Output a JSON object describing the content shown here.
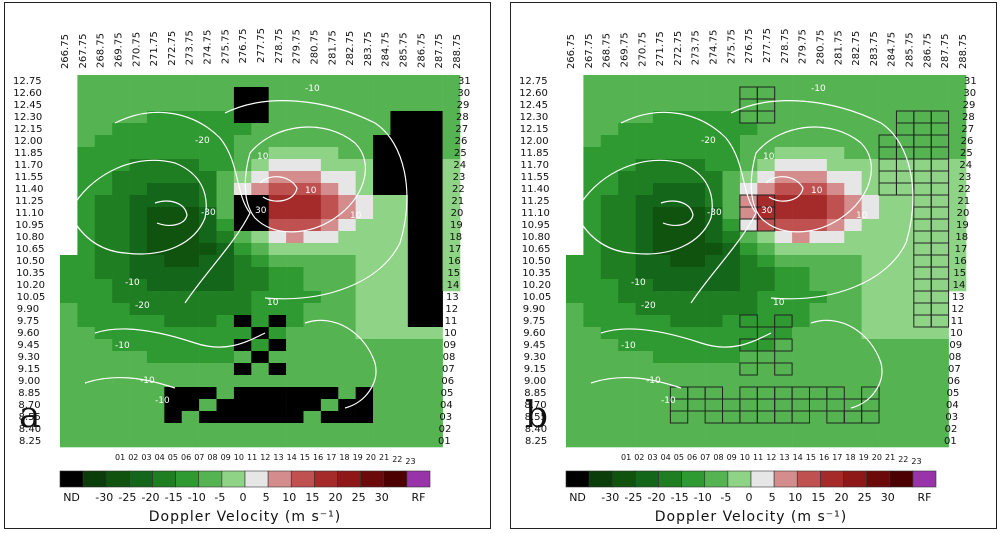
{
  "chart_data": [
    {
      "type": "heatmap",
      "panel_label": "a",
      "title": "",
      "xlabel": "",
      "ylabel": "",
      "top_tick_labels": [
        "266.75",
        "267.75",
        "268.75",
        "269.75",
        "270.75",
        "271.75",
        "272.75",
        "273.75",
        "274.75",
        "275.75",
        "276.75",
        "277.75",
        "278.75",
        "279.75",
        "280.75",
        "281.75",
        "282.75",
        "283.75",
        "284.75",
        "285.75",
        "286.75",
        "287.75",
        "288.75"
      ],
      "left_tick_labels": [
        "12.75",
        "12.60",
        "12.45",
        "12.30",
        "12.15",
        "12.00",
        "11.85",
        "11.70",
        "11.55",
        "11.40",
        "11.25",
        "11.10",
        "10.95",
        "10.80",
        "10.65",
        "10.50",
        "10.35",
        "10.20",
        "10.05",
        "9.90",
        "9.75",
        "9.60",
        "9.45",
        "9.30",
        "9.15",
        "9.00",
        "8.85",
        "8.70",
        "8.55",
        "8.40",
        "8.25"
      ],
      "right_tick_labels": [
        "31",
        "30",
        "29",
        "28",
        "27",
        "26",
        "25",
        "24",
        "23",
        "22",
        "21",
        "20",
        "19",
        "18",
        "17",
        "16",
        "15",
        "14",
        "13",
        "12",
        "11",
        "10",
        "09",
        "08",
        "07",
        "06",
        "05",
        "04",
        "03",
        "02",
        "01"
      ],
      "bottom_tick_labels": [
        "01",
        "02",
        "03",
        "04",
        "05",
        "06",
        "07",
        "08",
        "09",
        "10",
        "11",
        "12",
        "13",
        "14",
        "15",
        "16",
        "17",
        "18",
        "19",
        "20",
        "21",
        "22",
        "23"
      ],
      "contour_labels": [
        "-10",
        "-20",
        "-30",
        "-10",
        "-20",
        "-10",
        "10",
        "30",
        "10",
        "10",
        "10",
        "-10",
        "-10"
      ],
      "colorbar": {
        "label": "Doppler Velocity (m s⁻¹)",
        "tick_labels": [
          "ND",
          "-30",
          "-25",
          "-20",
          "-15",
          "-10",
          "-5",
          "0",
          "5",
          "10",
          "15",
          "20",
          "25",
          "30",
          "RF"
        ],
        "colors": [
          "#000000",
          "#0b3d0b",
          "#0f530f",
          "#13661a",
          "#1f7d22",
          "#2f9a32",
          "#55b451",
          "#8fd486",
          "#e6e6e6",
          "#d48c8c",
          "#bf5151",
          "#a52a2a",
          "#8e1717",
          "#6b0a0a",
          "#4d0000",
          "#9933aa"
        ]
      },
      "no_data_regions": [
        "north strip columns 277-278 rows 12.60-12.30",
        "east edge columns 283-286",
        "southern arc rows 8.55-8.85",
        "small patch near 277.75, 11.25"
      ]
    },
    {
      "type": "heatmap",
      "panel_label": "b",
      "title": "",
      "xlabel": "",
      "ylabel": "",
      "top_tick_labels": [
        "266.75",
        "267.75",
        "268.75",
        "269.75",
        "270.75",
        "271.75",
        "272.75",
        "273.75",
        "274.75",
        "275.75",
        "276.75",
        "277.75",
        "278.75",
        "279.75",
        "280.75",
        "281.75",
        "282.75",
        "283.75",
        "284.75",
        "285.75",
        "286.75",
        "287.75",
        "288.75"
      ],
      "left_tick_labels": [
        "12.75",
        "12.60",
        "12.45",
        "12.30",
        "12.15",
        "12.00",
        "11.85",
        "11.70",
        "11.55",
        "11.40",
        "11.25",
        "11.10",
        "10.95",
        "10.80",
        "10.65",
        "10.50",
        "10.35",
        "10.20",
        "10.05",
        "9.90",
        "9.75",
        "9.60",
        "9.45",
        "9.30",
        "9.15",
        "9.00",
        "8.85",
        "8.70",
        "8.55",
        "8.40",
        "8.25"
      ],
      "right_tick_labels": [
        "31",
        "30",
        "29",
        "28",
        "27",
        "26",
        "25",
        "24",
        "23",
        "22",
        "21",
        "20",
        "19",
        "18",
        "17",
        "16",
        "15",
        "14",
        "13",
        "12",
        "11",
        "10",
        "09",
        "08",
        "07",
        "06",
        "05",
        "04",
        "03",
        "02",
        "01"
      ],
      "bottom_tick_labels": [
        "01",
        "02",
        "03",
        "04",
        "05",
        "06",
        "07",
        "08",
        "09",
        "10",
        "11",
        "12",
        "13",
        "14",
        "15",
        "16",
        "17",
        "18",
        "19",
        "20",
        "21",
        "22",
        "23"
      ],
      "contour_labels": [
        "-10",
        "-20",
        "-30",
        "-10",
        "-20",
        "-10",
        "10",
        "30",
        "10",
        "10",
        "10",
        "-10",
        "-10"
      ],
      "colorbar": {
        "label": "Doppler Velocity (m s⁻¹)",
        "tick_labels": [
          "ND",
          "-30",
          "-25",
          "-20",
          "-15",
          "-10",
          "-5",
          "0",
          "5",
          "10",
          "15",
          "20",
          "25",
          "30",
          "RF"
        ],
        "colors": [
          "#000000",
          "#0b3d0b",
          "#0f530f",
          "#13661a",
          "#1f7d22",
          "#2f9a32",
          "#55b451",
          "#8fd486",
          "#e6e6e6",
          "#d48c8c",
          "#bf5151",
          "#a52a2a",
          "#8e1717",
          "#6b0a0a",
          "#4d0000",
          "#9933aa"
        ]
      },
      "filled_regions_outlined": true
    }
  ]
}
